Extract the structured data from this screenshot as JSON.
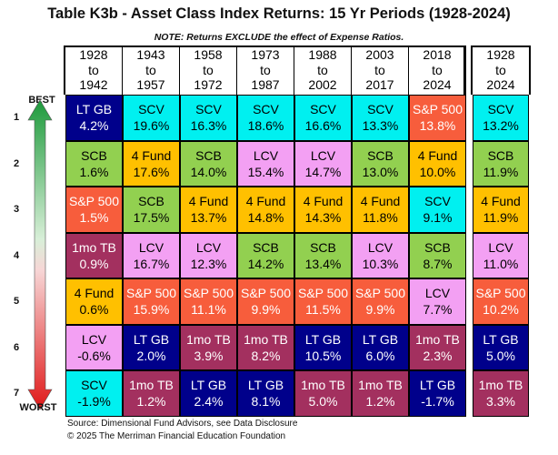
{
  "title": "Table K3b - Asset Class Index Returns: 15 Yr Periods (1928-2024)",
  "note": "NOTE: Returns EXCLUDE the effect of Expense Ratios.",
  "best_label": "BEST",
  "worst_label": "WORST",
  "ranks": [
    "1",
    "2",
    "3",
    "4",
    "5",
    "6",
    "7"
  ],
  "source": "Source: Dimensional Fund Advisors, see Data Disclosure",
  "copyright": "© 2025 The Merriman Financial Education Foundation",
  "colors": {
    "LT GB": "#00008b",
    "SCV": "#00f0f0",
    "SCB": "#92d050",
    "4 Fund": "#ffc000",
    "LCV": "#f3a0f3",
    "S&P 500": "#f75d3c",
    "1mo TB": "#a3305f"
  },
  "text_colors": {
    "LT GB": "#ffffff",
    "1mo TB": "#ffffff",
    "S&P 500": "#ffffff",
    "SCV": "#000000",
    "SCB": "#000000",
    "4 Fund": "#000000",
    "LCV": "#000000"
  },
  "chart_data": {
    "type": "table",
    "title": "Table K3b - Asset Class Index Returns: 15 Yr Periods (1928-2024)",
    "columns": [
      {
        "l1": "1928",
        "l2": "to",
        "l3": "1942"
      },
      {
        "l1": "1943",
        "l2": "to",
        "l3": "1957"
      },
      {
        "l1": "1958",
        "l2": "to",
        "l3": "1972"
      },
      {
        "l1": "1973",
        "l2": "to",
        "l3": "1987"
      },
      {
        "l1": "1988",
        "l2": "to",
        "l3": "2002"
      },
      {
        "l1": "2003",
        "l2": "to",
        "l3": "2017"
      },
      {
        "l1": "2018",
        "l2": "to",
        "l3": "2024"
      },
      {
        "l1": "1928",
        "l2": "to",
        "l3": "2024"
      }
    ],
    "rows": [
      [
        {
          "a": "LT GB",
          "v": "4.2%"
        },
        {
          "a": "SCV",
          "v": "19.6%"
        },
        {
          "a": "SCV",
          "v": "16.3%"
        },
        {
          "a": "SCV",
          "v": "18.6%"
        },
        {
          "a": "SCV",
          "v": "16.6%"
        },
        {
          "a": "SCV",
          "v": "13.3%"
        },
        {
          "a": "S&P 500",
          "v": "13.8%"
        },
        {
          "a": "SCV",
          "v": "13.2%"
        }
      ],
      [
        {
          "a": "SCB",
          "v": "1.6%"
        },
        {
          "a": "4 Fund",
          "v": "17.6%"
        },
        {
          "a": "SCB",
          "v": "14.0%"
        },
        {
          "a": "LCV",
          "v": "15.4%"
        },
        {
          "a": "LCV",
          "v": "14.7%"
        },
        {
          "a": "SCB",
          "v": "13.0%"
        },
        {
          "a": "4 Fund",
          "v": "10.0%"
        },
        {
          "a": "SCB",
          "v": "11.9%"
        }
      ],
      [
        {
          "a": "S&P 500",
          "v": "1.5%"
        },
        {
          "a": "SCB",
          "v": "17.5%"
        },
        {
          "a": "4 Fund",
          "v": "13.7%"
        },
        {
          "a": "4 Fund",
          "v": "14.8%"
        },
        {
          "a": "4 Fund",
          "v": "14.3%"
        },
        {
          "a": "4 Fund",
          "v": "11.8%"
        },
        {
          "a": "SCV",
          "v": "9.1%"
        },
        {
          "a": "4 Fund",
          "v": "11.9%"
        }
      ],
      [
        {
          "a": "1mo TB",
          "v": "0.9%"
        },
        {
          "a": "LCV",
          "v": "16.7%"
        },
        {
          "a": "LCV",
          "v": "12.3%"
        },
        {
          "a": "SCB",
          "v": "14.2%"
        },
        {
          "a": "SCB",
          "v": "13.4%"
        },
        {
          "a": "LCV",
          "v": "10.3%"
        },
        {
          "a": "SCB",
          "v": "8.7%"
        },
        {
          "a": "LCV",
          "v": "11.0%"
        }
      ],
      [
        {
          "a": "4 Fund",
          "v": "0.6%"
        },
        {
          "a": "S&P 500",
          "v": "15.9%"
        },
        {
          "a": "S&P 500",
          "v": "11.1%"
        },
        {
          "a": "S&P 500",
          "v": "9.9%"
        },
        {
          "a": "S&P 500",
          "v": "11.5%"
        },
        {
          "a": "S&P 500",
          "v": "9.9%"
        },
        {
          "a": "LCV",
          "v": "7.7%"
        },
        {
          "a": "S&P 500",
          "v": "10.2%"
        }
      ],
      [
        {
          "a": "LCV",
          "v": "-0.6%"
        },
        {
          "a": "LT GB",
          "v": "2.0%"
        },
        {
          "a": "1mo TB",
          "v": "3.9%"
        },
        {
          "a": "1mo TB",
          "v": "8.2%"
        },
        {
          "a": "LT GB",
          "v": "10.5%"
        },
        {
          "a": "LT GB",
          "v": "6.0%"
        },
        {
          "a": "1mo TB",
          "v": "2.3%"
        },
        {
          "a": "LT GB",
          "v": "5.0%"
        }
      ],
      [
        {
          "a": "SCV",
          "v": "-1.9%"
        },
        {
          "a": "1mo TB",
          "v": "1.2%"
        },
        {
          "a": "LT GB",
          "v": "2.4%"
        },
        {
          "a": "LT GB",
          "v": "8.1%"
        },
        {
          "a": "1mo TB",
          "v": "5.0%"
        },
        {
          "a": "1mo TB",
          "v": "1.2%"
        },
        {
          "a": "LT GB",
          "v": "-1.7%"
        },
        {
          "a": "1mo TB",
          "v": "3.3%"
        }
      ]
    ]
  }
}
